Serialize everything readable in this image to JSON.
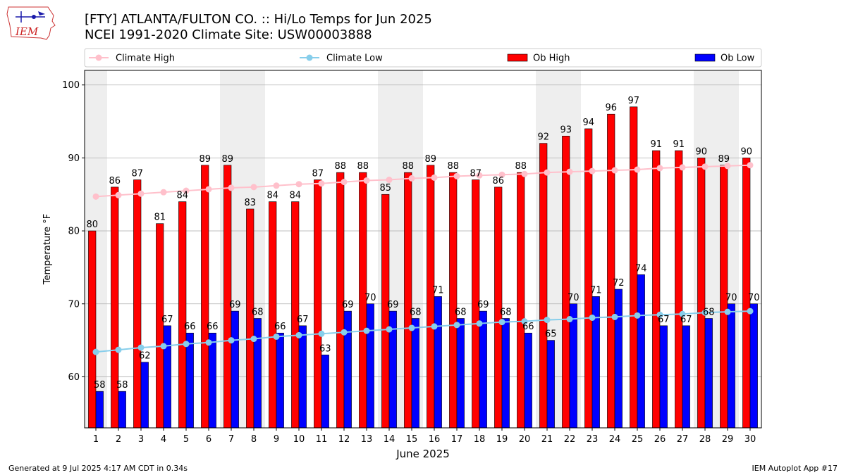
{
  "header": {
    "title": "[FTY] ATLANTA/FULTON CO. :: Hi/Lo Temps for Jun 2025",
    "subtitle": "NCEI 1991-2020 Climate Site: USW00003888"
  },
  "logo": {
    "text": "IEM"
  },
  "footer": {
    "left": "Generated at 9 Jul 2025 4:17 AM CDT in 0.34s",
    "right": "IEM Autoplot App #17"
  },
  "colors": {
    "ob_high": "#ff0000",
    "ob_low": "#0000ff",
    "climate_high": "#ffc0cb",
    "climate_low": "#87ceeb",
    "weekend_band": "#eeeeee",
    "grid": "#b0b0b0"
  },
  "chart_data": {
    "type": "bar",
    "xlabel": "June 2025",
    "ylabel": "Temperature °F",
    "ylim": [
      53,
      102
    ],
    "yticks": [
      60,
      70,
      80,
      90,
      100
    ],
    "grid": "horizontal",
    "legend_position": "top",
    "categories": [
      "1",
      "2",
      "3",
      "4",
      "5",
      "6",
      "7",
      "8",
      "9",
      "10",
      "11",
      "12",
      "13",
      "14",
      "15",
      "16",
      "17",
      "18",
      "19",
      "20",
      "21",
      "22",
      "23",
      "24",
      "25",
      "26",
      "27",
      "28",
      "29",
      "30"
    ],
    "shaded_days": [
      1,
      7,
      8,
      14,
      15,
      21,
      22,
      28,
      29
    ],
    "series": [
      {
        "name": "Ob High",
        "kind": "bar",
        "values": [
          80,
          86,
          87,
          81,
          84,
          89,
          89,
          83,
          84,
          84,
          87,
          88,
          88,
          85,
          88,
          89,
          88,
          87,
          86,
          88,
          92,
          93,
          94,
          96,
          97,
          91,
          91,
          90,
          89,
          90
        ]
      },
      {
        "name": "Ob Low",
        "kind": "bar",
        "values": [
          58,
          58,
          62,
          67,
          66,
          66,
          69,
          68,
          66,
          67,
          63,
          69,
          70,
          69,
          68,
          71,
          68,
          69,
          68,
          66,
          65,
          70,
          71,
          72,
          74,
          67,
          67,
          68,
          70,
          70
        ]
      },
      {
        "name": "Climate High",
        "kind": "line",
        "values": [
          84.7,
          84.9,
          85.1,
          85.3,
          85.5,
          85.7,
          85.9,
          86.0,
          86.2,
          86.4,
          86.5,
          86.7,
          86.9,
          87.0,
          87.2,
          87.3,
          87.5,
          87.6,
          87.7,
          87.8,
          88.0,
          88.1,
          88.2,
          88.3,
          88.4,
          88.6,
          88.7,
          88.8,
          88.9,
          89.0
        ]
      },
      {
        "name": "Climate Low",
        "kind": "line",
        "values": [
          63.4,
          63.7,
          64.0,
          64.2,
          64.5,
          64.7,
          65.0,
          65.2,
          65.5,
          65.7,
          65.9,
          66.1,
          66.3,
          66.5,
          66.7,
          66.9,
          67.1,
          67.3,
          67.5,
          67.6,
          67.8,
          67.9,
          68.1,
          68.2,
          68.4,
          68.5,
          68.6,
          68.8,
          68.9,
          69.0
        ]
      }
    ]
  }
}
